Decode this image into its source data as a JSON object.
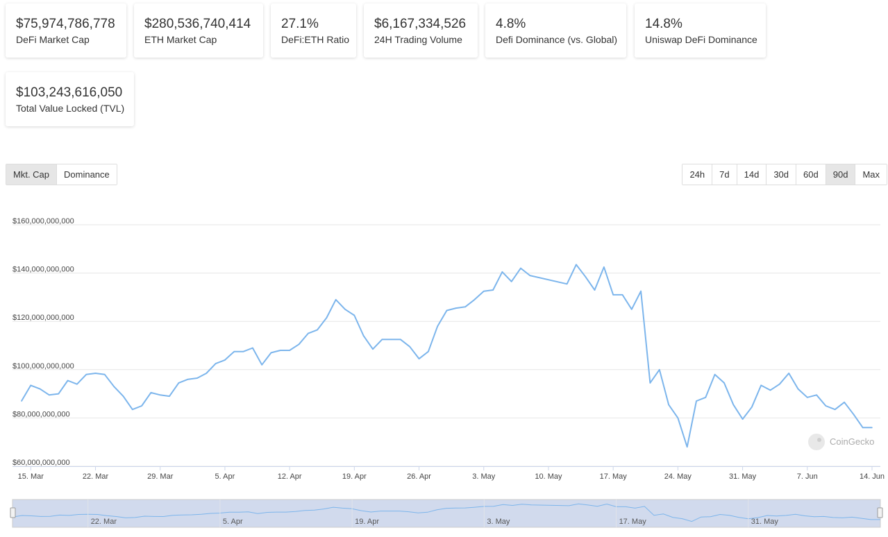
{
  "stats": [
    {
      "value": "$75,974,786,778",
      "label": "DeFi Market Cap"
    },
    {
      "value": "$280,536,740,414",
      "label": "ETH Market Cap"
    },
    {
      "value": "27.1%",
      "label": "DeFi:ETH Ratio"
    },
    {
      "value": "$6,167,334,526",
      "label": "24H Trading Volume"
    },
    {
      "value": "4.8%",
      "label": "Defi Dominance (vs. Global)"
    },
    {
      "value": "14.8%",
      "label": "Uniswap DeFi Dominance"
    },
    {
      "value": "$103,243,616,050",
      "label": "Total Value Locked (TVL)"
    }
  ],
  "chart_tabs": {
    "items": [
      "Mkt. Cap",
      "Dominance"
    ],
    "active": "Mkt. Cap"
  },
  "range_tabs": {
    "items": [
      "24h",
      "7d",
      "14d",
      "30d",
      "60d",
      "90d",
      "Max"
    ],
    "active": "90d"
  },
  "watermark": "CoinGecko",
  "colors": {
    "line": "#7cb5ec",
    "grid": "#e6e6e6",
    "navigator_mask": "rgba(102,133,194,0.3)",
    "navigator_border": "#cccccc"
  },
  "navigator_labels": [
    "22. Mar",
    "5. Apr",
    "19. Apr",
    "3. May",
    "17. May",
    "31. May"
  ],
  "chart_data": {
    "type": "line",
    "title": "",
    "xlabel": "",
    "ylabel": "",
    "ylim": [
      60000000000,
      160000000000
    ],
    "y_ticks": [
      60000000000,
      80000000000,
      100000000000,
      120000000000,
      140000000000,
      160000000000
    ],
    "y_tick_labels": [
      "$60,000,000,000",
      "$80,000,000,000",
      "$100,000,000,000",
      "$120,000,000,000",
      "$140,000,000,000",
      "$160,000,000,000"
    ],
    "x_tick_labels": [
      "15. Mar",
      "22. Mar",
      "29. Mar",
      "5. Apr",
      "12. Apr",
      "19. Apr",
      "26. Apr",
      "3. May",
      "10. May",
      "17. May",
      "24. May",
      "31. May",
      "7. Jun",
      "14. Jun"
    ],
    "x_start": "2021-03-14",
    "x_end": "2021-06-14",
    "grid": true,
    "legend": false,
    "series": [
      {
        "points": [
          [
            "2021-03-14",
            87000000000
          ],
          [
            "2021-03-15",
            93500000000
          ],
          [
            "2021-03-16",
            92000000000
          ],
          [
            "2021-03-17",
            89500000000
          ],
          [
            "2021-03-18",
            90000000000
          ],
          [
            "2021-03-19",
            95500000000
          ],
          [
            "2021-03-20",
            94000000000
          ],
          [
            "2021-03-21",
            98000000000
          ],
          [
            "2021-03-22",
            98500000000
          ],
          [
            "2021-03-23",
            98000000000
          ],
          [
            "2021-03-24",
            93000000000
          ],
          [
            "2021-03-25",
            89000000000
          ],
          [
            "2021-03-26",
            83500000000
          ],
          [
            "2021-03-27",
            85000000000
          ],
          [
            "2021-03-28",
            90500000000
          ],
          [
            "2021-03-29",
            89500000000
          ],
          [
            "2021-03-30",
            89000000000
          ],
          [
            "2021-03-31",
            94500000000
          ],
          [
            "2021-04-01",
            96000000000
          ],
          [
            "2021-04-02",
            96500000000
          ],
          [
            "2021-04-03",
            98500000000
          ],
          [
            "2021-04-04",
            102500000000
          ],
          [
            "2021-04-05",
            104000000000
          ],
          [
            "2021-04-06",
            107500000000
          ],
          [
            "2021-04-07",
            107500000000
          ],
          [
            "2021-04-08",
            109000000000
          ],
          [
            "2021-04-09",
            102000000000
          ],
          [
            "2021-04-10",
            107000000000
          ],
          [
            "2021-04-11",
            108000000000
          ],
          [
            "2021-04-12",
            108000000000
          ],
          [
            "2021-04-13",
            110500000000
          ],
          [
            "2021-04-14",
            115000000000
          ],
          [
            "2021-04-15",
            116500000000
          ],
          [
            "2021-04-16",
            121500000000
          ],
          [
            "2021-04-17",
            129000000000
          ],
          [
            "2021-04-18",
            125000000000
          ],
          [
            "2021-04-19",
            122500000000
          ],
          [
            "2021-04-20",
            114000000000
          ],
          [
            "2021-04-21",
            108500000000
          ],
          [
            "2021-04-22",
            112500000000
          ],
          [
            "2021-04-23",
            112500000000
          ],
          [
            "2021-04-24",
            112500000000
          ],
          [
            "2021-04-25",
            109500000000
          ],
          [
            "2021-04-26",
            104500000000
          ],
          [
            "2021-04-27",
            107500000000
          ],
          [
            "2021-04-28",
            118000000000
          ],
          [
            "2021-04-29",
            124500000000
          ],
          [
            "2021-04-30",
            125500000000
          ],
          [
            "2021-05-01",
            126000000000
          ],
          [
            "2021-05-02",
            129000000000
          ],
          [
            "2021-05-03",
            132500000000
          ],
          [
            "2021-05-04",
            133000000000
          ],
          [
            "2021-05-05",
            140500000000
          ],
          [
            "2021-05-06",
            136500000000
          ],
          [
            "2021-05-07",
            142000000000
          ],
          [
            "2021-05-08",
            139000000000
          ],
          [
            "2021-05-12",
            135500000000
          ],
          [
            "2021-05-13",
            143500000000
          ],
          [
            "2021-05-14",
            138500000000
          ],
          [
            "2021-05-15",
            133000000000
          ],
          [
            "2021-05-16",
            142500000000
          ],
          [
            "2021-05-17",
            131000000000
          ],
          [
            "2021-05-18",
            131000000000
          ],
          [
            "2021-05-19",
            125000000000
          ],
          [
            "2021-05-20",
            132500000000
          ],
          [
            "2021-05-21",
            94500000000
          ],
          [
            "2021-05-22",
            100000000000
          ],
          [
            "2021-05-23",
            85500000000
          ],
          [
            "2021-05-24",
            80000000000
          ],
          [
            "2021-05-25",
            68000000000
          ],
          [
            "2021-05-26",
            87000000000
          ],
          [
            "2021-05-27",
            88500000000
          ],
          [
            "2021-05-28",
            98000000000
          ],
          [
            "2021-05-29",
            94500000000
          ],
          [
            "2021-05-30",
            85500000000
          ],
          [
            "2021-05-31",
            79500000000
          ],
          [
            "2021-06-01",
            84500000000
          ],
          [
            "2021-06-02",
            93500000000
          ],
          [
            "2021-06-03",
            91500000000
          ],
          [
            "2021-06-04",
            94000000000
          ],
          [
            "2021-06-05",
            98500000000
          ],
          [
            "2021-06-06",
            92000000000
          ],
          [
            "2021-06-07",
            88500000000
          ],
          [
            "2021-06-08",
            89500000000
          ],
          [
            "2021-06-09",
            85000000000
          ],
          [
            "2021-06-10",
            83500000000
          ],
          [
            "2021-06-11",
            86500000000
          ],
          [
            "2021-06-12",
            81500000000
          ],
          [
            "2021-06-13",
            76000000000
          ],
          [
            "2021-06-14",
            76000000000
          ]
        ]
      }
    ]
  }
}
